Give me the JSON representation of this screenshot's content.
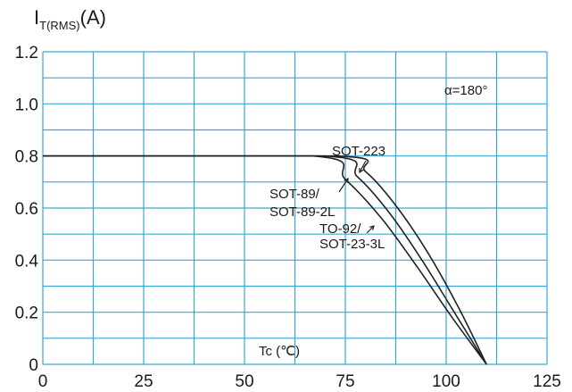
{
  "chart_data": {
    "type": "line",
    "ylabel_main": "I",
    "ylabel_sub": "T(RMS)",
    "ylabel_unit": "(A)",
    "xlabel": "Tc (℃)",
    "xlim": [
      0,
      125
    ],
    "ylim": [
      0,
      1.2
    ],
    "x_ticks": [
      "0",
      "25",
      "50",
      "75",
      "100",
      "125"
    ],
    "y_ticks": [
      "0",
      "0.2",
      "0.4",
      "0.6",
      "0.8",
      "1.0",
      "1.2"
    ],
    "grid": true,
    "grid_color": "#3aa6d8",
    "annotation": "α=180°",
    "series": [
      {
        "name": "SOT-223",
        "points": [
          [
            0,
            0.8
          ],
          [
            73,
            0.8
          ],
          [
            80,
            0.74
          ],
          [
            87,
            0.62
          ],
          [
            95,
            0.44
          ],
          [
            103,
            0.22
          ],
          [
            110,
            0.0
          ]
        ]
      },
      {
        "name": "SOT-89/ SOT-89-2L",
        "points": [
          [
            0,
            0.8
          ],
          [
            70,
            0.8
          ],
          [
            78,
            0.72
          ],
          [
            86,
            0.58
          ],
          [
            94,
            0.4
          ],
          [
            102,
            0.2
          ],
          [
            110,
            0.0
          ]
        ]
      },
      {
        "name": "TO-92/ SOT-23-3L",
        "points": [
          [
            0,
            0.8
          ],
          [
            67,
            0.8
          ],
          [
            75,
            0.71
          ],
          [
            84,
            0.56
          ],
          [
            93,
            0.37
          ],
          [
            101,
            0.19
          ],
          [
            110,
            0.0
          ]
        ]
      }
    ],
    "series_labels": [
      {
        "lines": [
          "SOT-223"
        ]
      },
      {
        "lines": [
          "SOT-89/",
          "SOT-89-2L"
        ]
      },
      {
        "lines": [
          "TO-92/",
          "SOT-23-3L"
        ]
      }
    ]
  }
}
